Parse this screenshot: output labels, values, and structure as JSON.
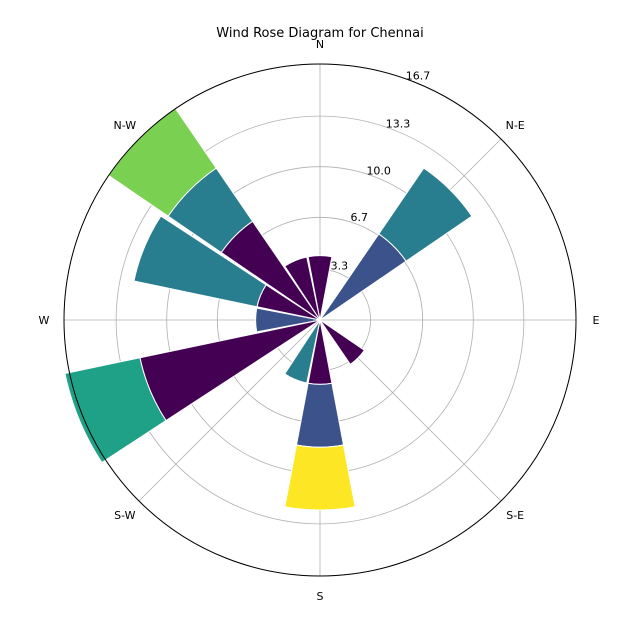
{
  "chart_data": {
    "type": "bar",
    "polar": true,
    "title": "Wind Rose Diagram for Chennai",
    "direction_labels": [
      {
        "label": "N",
        "angle": 0
      },
      {
        "label": "N-E",
        "angle": 45
      },
      {
        "label": "E",
        "angle": 90
      },
      {
        "label": "S-E",
        "angle": 135
      },
      {
        "label": "S",
        "angle": 180
      },
      {
        "label": "S-W",
        "angle": 225
      },
      {
        "label": "W",
        "angle": 270
      },
      {
        "label": "N-W",
        "angle": 315
      }
    ],
    "radial_ticks": [
      "3.3",
      "6.7",
      "10.0",
      "13.3",
      "16.7"
    ],
    "radial_tick_values": [
      3.3,
      6.7,
      10.0,
      13.3,
      16.7
    ],
    "rmax": 16.7,
    "sector_width_deg": 22.5,
    "grid": true,
    "stack_colors": [
      "#440154",
      "#3b528b",
      "#287d8e",
      "#1fa187",
      "#7ad151",
      "#fde725"
    ],
    "sectors": [
      {
        "angle": 0,
        "segments": [
          {
            "value": 4.2,
            "color": "#440154"
          }
        ]
      },
      {
        "angle": 22.5,
        "segments": [
          {
            "value": 0.0,
            "color": "#440154"
          }
        ]
      },
      {
        "angle": 45,
        "segments": [
          {
            "value": 6.8,
            "color": "#3b528b"
          },
          {
            "value": 5.2,
            "color": "#287d8e"
          }
        ]
      },
      {
        "angle": 67.5,
        "segments": [
          {
            "value": 0.0,
            "color": "#440154"
          }
        ]
      },
      {
        "angle": 90,
        "segments": [
          {
            "value": 0.0,
            "color": "#440154"
          }
        ]
      },
      {
        "angle": 112.5,
        "segments": [
          {
            "value": 0.0,
            "color": "#440154"
          }
        ]
      },
      {
        "angle": 135,
        "segments": [
          {
            "value": 3.5,
            "color": "#440154"
          }
        ]
      },
      {
        "angle": 157.5,
        "segments": [
          {
            "value": 0.0,
            "color": "#440154"
          }
        ]
      },
      {
        "angle": 180,
        "segments": [
          {
            "value": 4.2,
            "color": "#440154"
          },
          {
            "value": 4.1,
            "color": "#3b528b"
          },
          {
            "value": 4.1,
            "color": "#fde725"
          }
        ]
      },
      {
        "angle": 202.5,
        "segments": [
          {
            "value": 4.2,
            "color": "#287d8e"
          }
        ]
      },
      {
        "angle": 225,
        "segments": [
          {
            "value": 0.0,
            "color": "#440154"
          }
        ]
      },
      {
        "angle": 247.5,
        "segments": [
          {
            "value": 12.0,
            "color": "#440154"
          },
          {
            "value": 5.0,
            "color": "#1fa187"
          }
        ]
      },
      {
        "angle": 270,
        "segments": [
          {
            "value": 4.2,
            "color": "#3b528b"
          }
        ]
      },
      {
        "angle": 292.5,
        "segments": [
          {
            "value": 4.2,
            "color": "#440154"
          },
          {
            "value": 8.2,
            "color": "#287d8e"
          }
        ]
      },
      {
        "angle": 315,
        "segments": [
          {
            "value": 7.8,
            "color": "#440154"
          },
          {
            "value": 4.2,
            "color": "#287d8e"
          },
          {
            "value": 4.7,
            "color": "#7ad151"
          }
        ]
      },
      {
        "angle": 337.5,
        "segments": [
          {
            "value": 4.2,
            "color": "#440154"
          }
        ]
      }
    ]
  }
}
